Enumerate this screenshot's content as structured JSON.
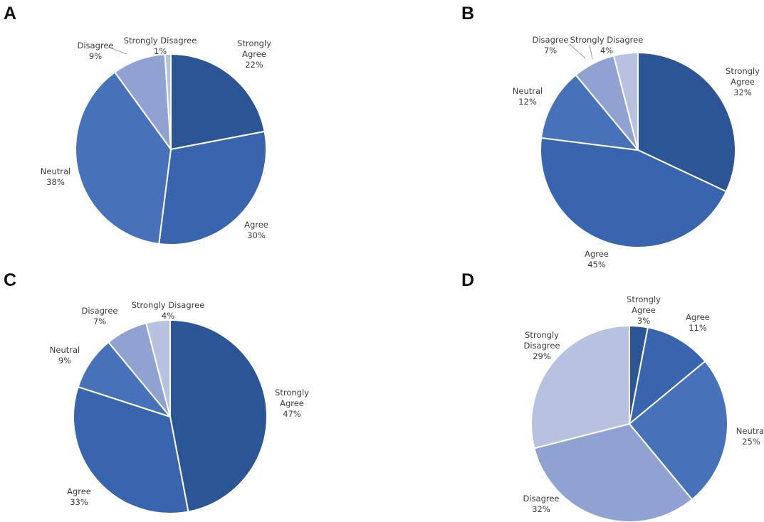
{
  "chart_data": [
    {
      "type": "pie",
      "panel": "A",
      "start": "top, clockwise",
      "slices": [
        {
          "label": [
            "Strongly",
            "Agree"
          ],
          "value": 22,
          "value_text": "22%",
          "color": "#2c5596"
        },
        {
          "label": [
            "Agree"
          ],
          "value": 30,
          "value_text": "30%",
          "color": "#3965af"
        },
        {
          "label": [
            "Neutral"
          ],
          "value": 38,
          "value_text": "38%",
          "color": "#4772ba"
        },
        {
          "label": [
            "Disagree"
          ],
          "value": 9,
          "value_text": "9%",
          "color": "#8fa2d2"
        },
        {
          "label": [
            "Strongly Disagree"
          ],
          "value": 1,
          "value_text": "1%",
          "color": "#b8c2e0"
        }
      ]
    },
    {
      "type": "pie",
      "panel": "B",
      "start": "top, clockwise",
      "slices": [
        {
          "label": [
            "Strongly",
            "Agree"
          ],
          "value": 32,
          "value_text": "32%",
          "color": "#2c5596"
        },
        {
          "label": [
            "Agree"
          ],
          "value": 45,
          "value_text": "45%",
          "color": "#3965af"
        },
        {
          "label": [
            "Neutral"
          ],
          "value": 12,
          "value_text": "12%",
          "color": "#4772ba"
        },
        {
          "label": [
            "Disagree"
          ],
          "value": 7,
          "value_text": "7%",
          "color": "#8fa2d2"
        },
        {
          "label": [
            "Strongly Disagree"
          ],
          "value": 4,
          "value_text": "4%",
          "color": "#b8c2e0"
        }
      ]
    },
    {
      "type": "pie",
      "panel": "C",
      "start": "top, clockwise",
      "slices": [
        {
          "label": [
            "Strongly",
            "Agree"
          ],
          "value": 47,
          "value_text": "47%",
          "color": "#2c5596"
        },
        {
          "label": [
            "Agree"
          ],
          "value": 33,
          "value_text": "33%",
          "color": "#3965af"
        },
        {
          "label": [
            "Neutral"
          ],
          "value": 9,
          "value_text": "9%",
          "color": "#4772ba"
        },
        {
          "label": [
            "Disagree"
          ],
          "value": 7,
          "value_text": "7%",
          "color": "#8fa2d2"
        },
        {
          "label": [
            "Strongly Disagree"
          ],
          "value": 4,
          "value_text": "4%",
          "color": "#b8c2e0"
        }
      ]
    },
    {
      "type": "pie",
      "panel": "D",
      "start": "top, clockwise",
      "slices": [
        {
          "label": [
            "Strongly",
            "Agree"
          ],
          "value": 3,
          "value_text": "3%",
          "color": "#2c5596"
        },
        {
          "label": [
            "Agree"
          ],
          "value": 11,
          "value_text": "11%",
          "color": "#3965af"
        },
        {
          "label": [
            "Neutral"
          ],
          "value": 25,
          "value_text": "25%",
          "color": "#4772ba"
        },
        {
          "label": [
            "Disagree"
          ],
          "value": 32,
          "value_text": "32%",
          "color": "#8fa2d2"
        },
        {
          "label": [
            "Strongly",
            "Disagree"
          ],
          "value": 29,
          "value_text": "29%",
          "color": "#b8c2e0"
        }
      ]
    }
  ]
}
